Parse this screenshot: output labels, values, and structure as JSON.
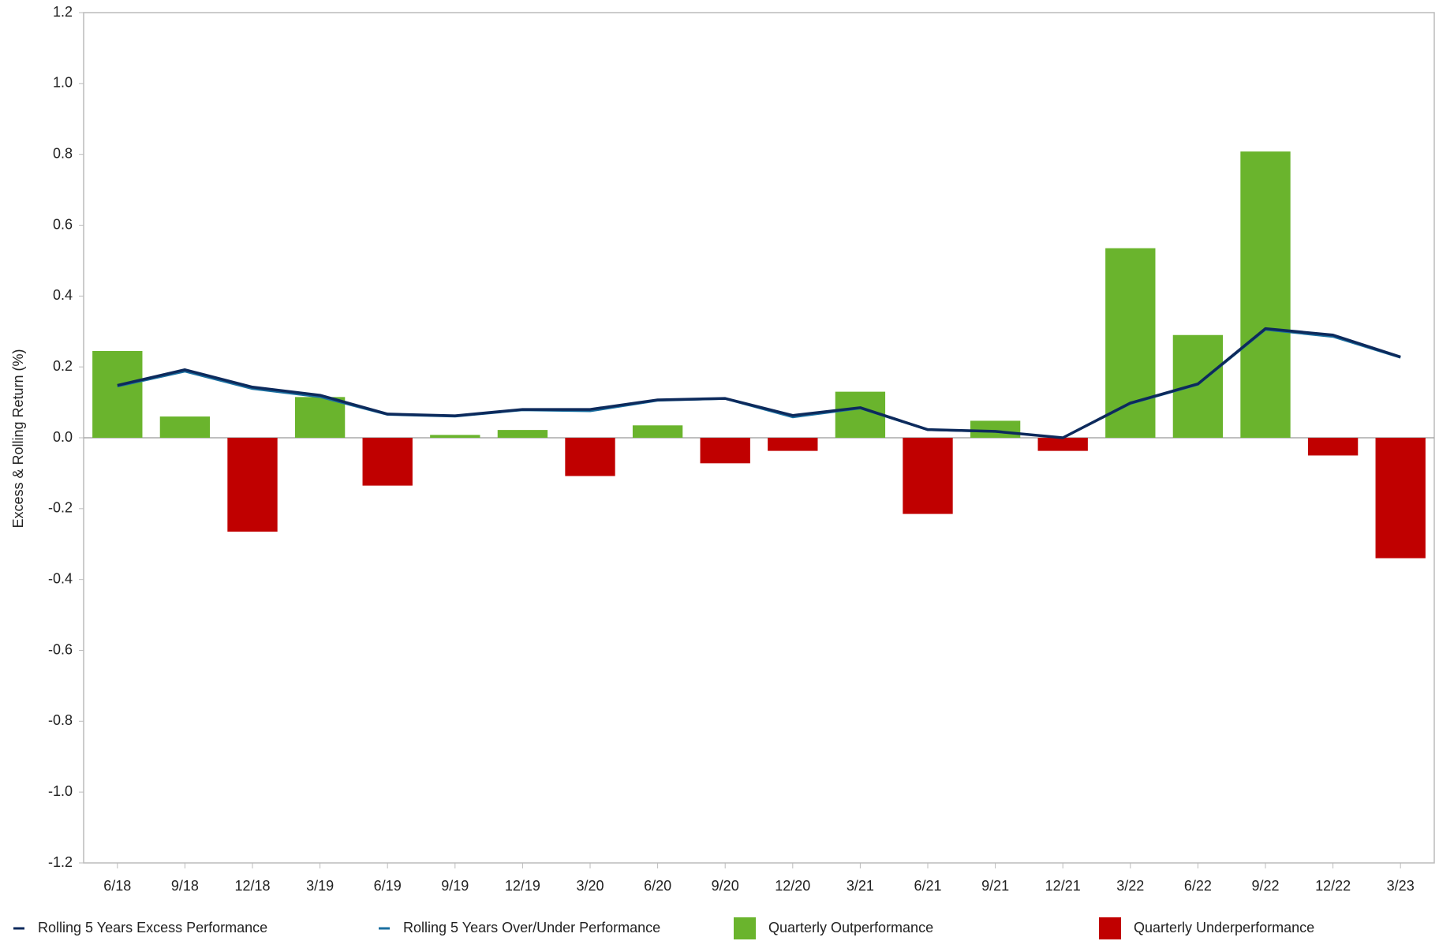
{
  "chart_data": {
    "type": "bar",
    "y_label": "Excess & Rolling Return (%)",
    "categories": [
      "6/18",
      "9/18",
      "12/18",
      "3/19",
      "6/19",
      "9/19",
      "12/19",
      "3/20",
      "6/20",
      "9/20",
      "12/20",
      "3/21",
      "6/21",
      "9/21",
      "12/21",
      "3/22",
      "6/22",
      "9/22",
      "12/22",
      "3/23"
    ],
    "series": [
      {
        "name": "Rolling 5 Years Excess Performance",
        "type": "line",
        "color": "#0d2a5c",
        "values": [
          0.148,
          0.192,
          0.143,
          0.12,
          0.067,
          0.062,
          0.08,
          0.08,
          0.107,
          0.111,
          0.063,
          0.085,
          0.023,
          0.018,
          0.0,
          0.098,
          0.152,
          0.308,
          0.29,
          0.228
        ]
      },
      {
        "name": "Rolling 5 Years Over/Under Performance",
        "type": "line",
        "color": "#1a6fa0",
        "values": [
          0.145,
          0.187,
          0.138,
          0.115,
          0.065,
          0.06,
          0.078,
          0.075,
          0.105,
          0.11,
          0.058,
          0.083,
          0.022,
          0.017,
          0.0,
          0.096,
          0.15,
          0.305,
          0.285,
          0.226
        ]
      },
      {
        "name": "Quarterly Outperformance",
        "type": "bar",
        "color": "#6ab42d",
        "values": [
          0.245,
          0.06,
          null,
          0.115,
          null,
          0.008,
          0.022,
          null,
          0.035,
          null,
          null,
          0.13,
          null,
          0.048,
          null,
          0.535,
          0.29,
          0.808,
          null,
          null
        ]
      },
      {
        "name": "Quarterly Underperformance",
        "type": "bar",
        "color": "#c00000",
        "values": [
          null,
          null,
          -0.265,
          null,
          -0.135,
          null,
          null,
          -0.108,
          null,
          -0.072,
          -0.037,
          null,
          -0.215,
          null,
          -0.037,
          null,
          null,
          null,
          -0.05,
          -0.34
        ]
      }
    ],
    "ylim": [
      -1.2,
      1.2
    ],
    "yticks": [
      -1.2,
      {
        "value": -1.0,
        "label": "-1.0"
      },
      -0.8,
      -0.6,
      -0.4,
      -0.2,
      {
        "value": 0,
        "label": "0.0"
      },
      0.2,
      0.4,
      0.6,
      0.8,
      {
        "value": 1.0,
        "label": "1.0"
      },
      1.2
    ],
    "grid": false,
    "legend": "bottom"
  }
}
